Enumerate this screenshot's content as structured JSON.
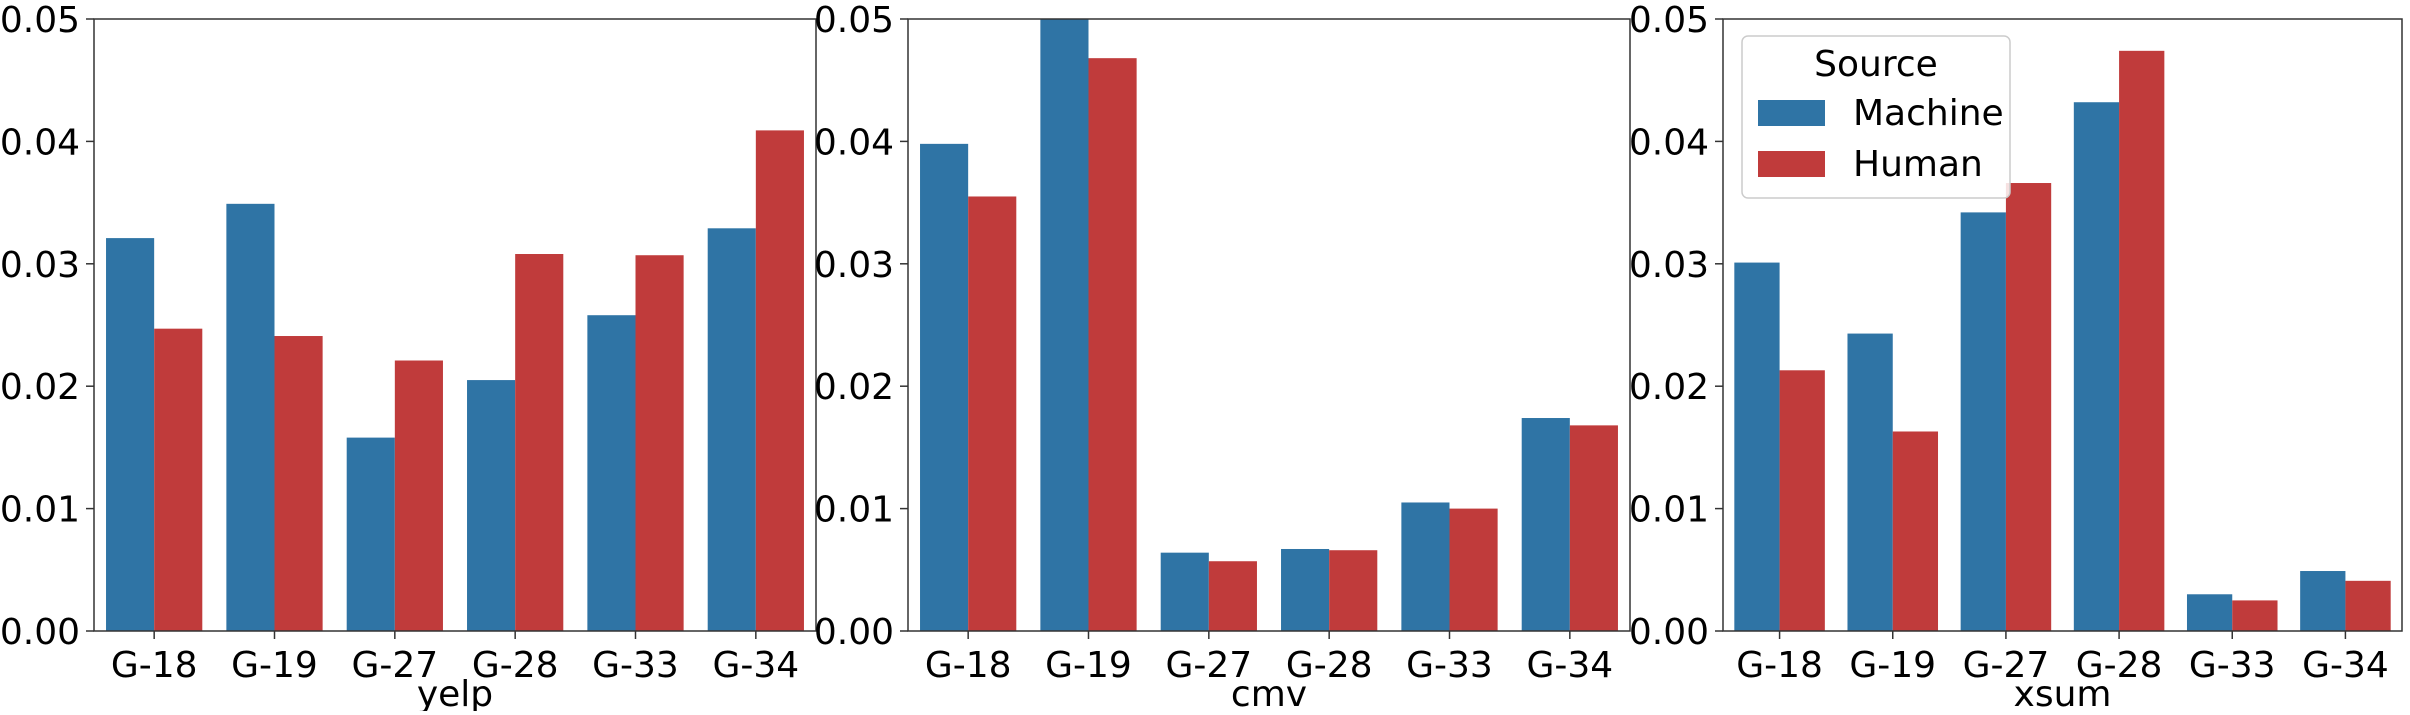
{
  "colors": {
    "machine": "#2f74a5",
    "human": "#c03b3b",
    "axis": "#333333"
  },
  "legend": {
    "title": "Source",
    "placement": "upper-left of third panel",
    "entries": [
      "Machine",
      "Human"
    ]
  },
  "chart_data": [
    {
      "type": "bar",
      "title": "",
      "xlabel": "yelp",
      "ylabel": "",
      "ylim": [
        0,
        0.05
      ],
      "yticks": [
        "0.00",
        "0.01",
        "0.02",
        "0.03",
        "0.04",
        "0.05"
      ],
      "categories": [
        "G-18",
        "G-19",
        "G-27",
        "G-28",
        "G-33",
        "G-34"
      ],
      "series": [
        {
          "name": "Machine",
          "values": [
            0.0321,
            0.0349,
            0.0158,
            0.0205,
            0.0258,
            0.0329
          ]
        },
        {
          "name": "Human",
          "values": [
            0.0247,
            0.0241,
            0.0221,
            0.0308,
            0.0307,
            0.0409
          ]
        }
      ]
    },
    {
      "type": "bar",
      "title": "",
      "xlabel": "cmv",
      "ylabel": "",
      "ylim": [
        0,
        0.05
      ],
      "yticks": [
        "0.00",
        "0.01",
        "0.02",
        "0.03",
        "0.04",
        "0.05"
      ],
      "categories": [
        "G-18",
        "G-19",
        "G-27",
        "G-28",
        "G-33",
        "G-34"
      ],
      "series": [
        {
          "name": "Machine",
          "values": [
            0.0398,
            0.0502,
            0.0064,
            0.0067,
            0.0105,
            0.0174
          ]
        },
        {
          "name": "Human",
          "values": [
            0.0355,
            0.0468,
            0.0057,
            0.0066,
            0.01,
            0.0168
          ]
        }
      ]
    },
    {
      "type": "bar",
      "title": "",
      "xlabel": "xsum",
      "ylabel": "",
      "ylim": [
        0,
        0.05
      ],
      "yticks": [
        "0.00",
        "0.01",
        "0.02",
        "0.03",
        "0.04",
        "0.05"
      ],
      "categories": [
        "G-18",
        "G-19",
        "G-27",
        "G-28",
        "G-33",
        "G-34"
      ],
      "series": [
        {
          "name": "Machine",
          "values": [
            0.0301,
            0.0243,
            0.0342,
            0.0432,
            0.003,
            0.0049
          ]
        },
        {
          "name": "Human",
          "values": [
            0.0213,
            0.0163,
            0.0366,
            0.0474,
            0.0025,
            0.0041
          ]
        }
      ]
    }
  ]
}
